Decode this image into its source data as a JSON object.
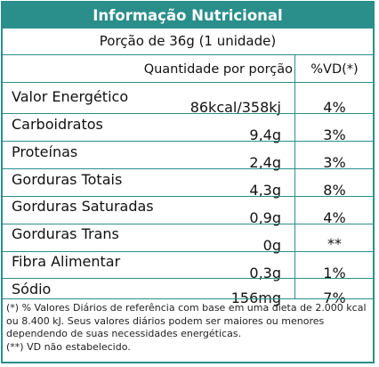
{
  "title": "Informação Nutricional",
  "portion": "Porção de 36g (1 unidade)",
  "column_headers": {
    "quantity": "Quantidade por porção",
    "daily_value": "%VD(*)"
  },
  "rows": [
    {
      "name": "Valor Energético",
      "quantity": "86kcal/358kj",
      "daily_value": "4%"
    },
    {
      "name": "Carboidratos",
      "quantity": "9,4g",
      "daily_value": "3%"
    },
    {
      "name": "Proteínas",
      "quantity": "2,4g",
      "daily_value": "3%"
    },
    {
      "name": "Gorduras Totais",
      "quantity": "4,3g",
      "daily_value": "8%"
    },
    {
      "name": "Gorduras Saturadas",
      "quantity": "0,9g",
      "daily_value": "4%"
    },
    {
      "name": "Gorduras Trans",
      "quantity": "0g",
      "daily_value": "**"
    },
    {
      "name": "Fibra Alimentar",
      "quantity": "0,3g",
      "daily_value": "1%"
    },
    {
      "name": "Sódio",
      "quantity": "156mg",
      "daily_value": "7%"
    }
  ],
  "footnotes": [
    "(*) % Valores Diários de referência com base em uma dieta de 2.000 kcal ou 8.400 kJ. Seus valores diários podem ser maiores ou menores dependendo de suas necessidades energéticas.",
    "(**) VD não estabelecido."
  ],
  "colors": {
    "accent": "#2a8f8b",
    "header_text": "#ffffff"
  }
}
